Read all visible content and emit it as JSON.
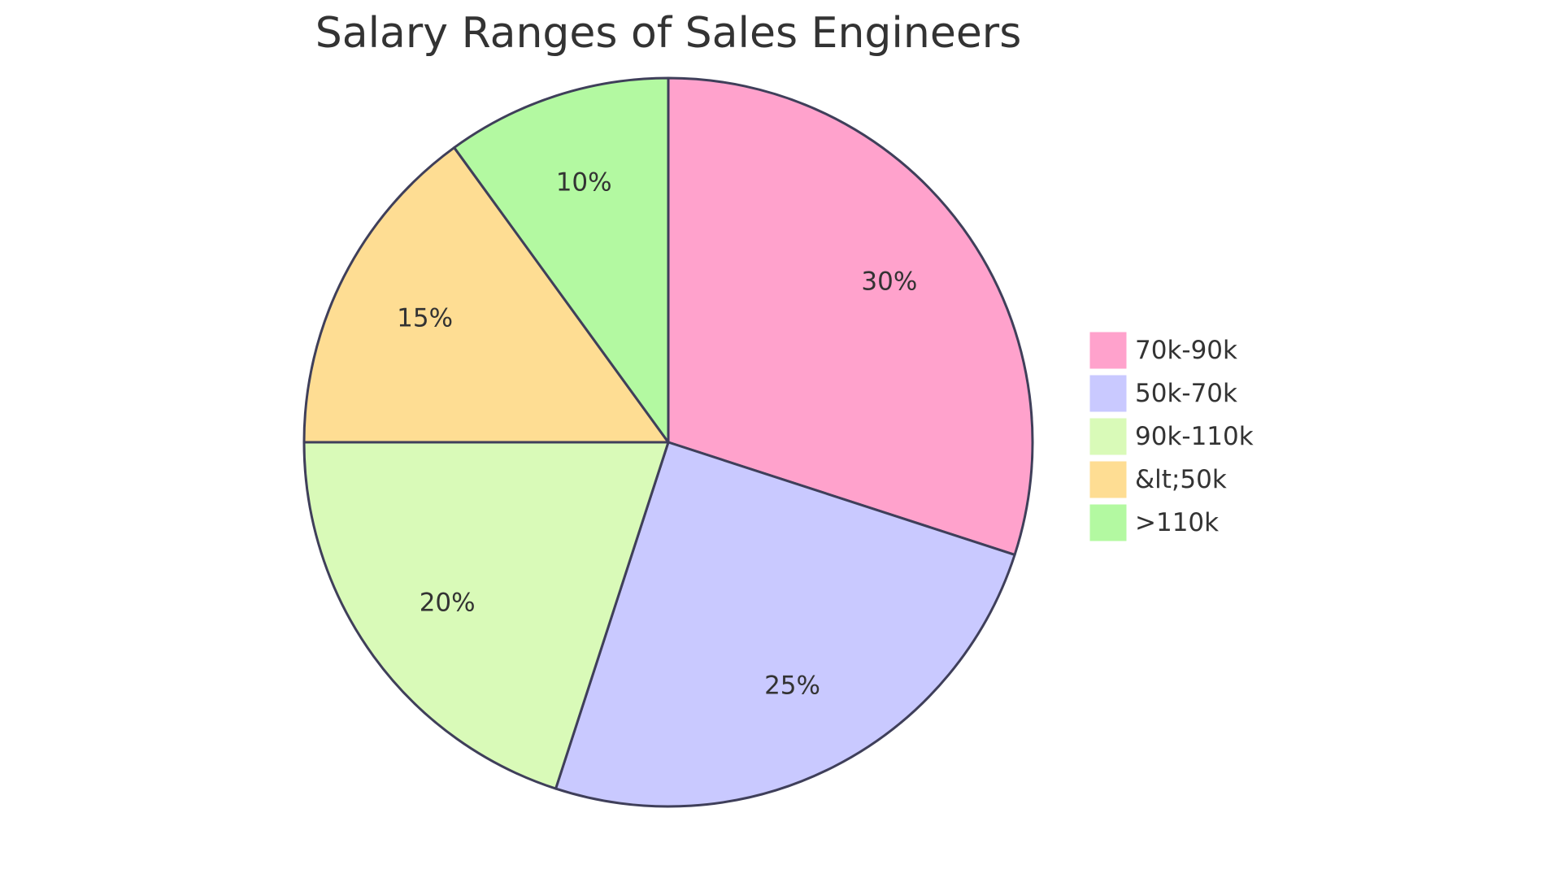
{
  "chart_data": {
    "type": "pie",
    "title": "Salary Ranges of Sales Engineers",
    "start_angle": "12 o'clock, clockwise",
    "slices": [
      {
        "label": "70k-90k",
        "value": 30,
        "display": "30%",
        "color": "#ffa2cc"
      },
      {
        "label": "50k-70k",
        "value": 25,
        "display": "25%",
        "color": "#c9c9ff"
      },
      {
        "label": "90k-110k",
        "value": 20,
        "display": "20%",
        "color": "#d9fab8"
      },
      {
        "label": "&lt;50k",
        "value": 15,
        "display": "15%",
        "color": "#fedd93"
      },
      {
        "label": ">110k",
        "value": 10,
        "display": "10%",
        "color": "#b3f9a1"
      }
    ],
    "legend_position": "right"
  }
}
